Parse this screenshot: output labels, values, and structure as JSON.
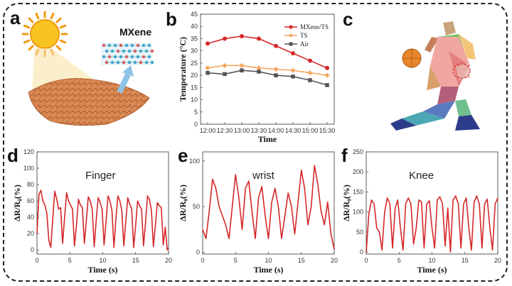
{
  "panels": {
    "a": "a",
    "b": "b",
    "c": "c",
    "d": "d",
    "e": "e",
    "f": "f"
  },
  "panel_a": {
    "label": "MXene"
  },
  "colors": {
    "red": "#d62728",
    "orange": "#f4a65c",
    "gray": "#555555",
    "sun": "#f7c41f",
    "fabric": "#d98a55",
    "arrow": "#8ec2e6"
  },
  "chart_data": [
    {
      "id": "temperature",
      "type": "line",
      "title": "",
      "xlabel": "Time",
      "ylabel": "Temperature (°C)",
      "categories": [
        "12:00",
        "12:30",
        "13:00",
        "13:30",
        "14:00",
        "14:30",
        "15:00",
        "15:30"
      ],
      "ylim": [
        0,
        45
      ],
      "yticks": [
        0,
        5,
        10,
        15,
        20,
        25,
        30,
        35,
        40,
        45
      ],
      "legend": "top-right",
      "series": [
        {
          "name": "MXene/TS",
          "color": "#d62728",
          "marker": "circle",
          "values": [
            33,
            35,
            36,
            35,
            32,
            29,
            26,
            23
          ]
        },
        {
          "name": "TS",
          "color": "#f4a65c",
          "marker": "diamond",
          "values": [
            23,
            24,
            24,
            23,
            22.5,
            22,
            21,
            20
          ]
        },
        {
          "name": "Air",
          "color": "#555555",
          "marker": "square",
          "values": [
            21,
            20.5,
            22,
            21.5,
            20,
            19.5,
            18,
            16
          ]
        }
      ]
    },
    {
      "id": "finger",
      "type": "line",
      "title": "",
      "label": "Finger",
      "xlabel": "Time (s)",
      "ylabel": "ΔR/R₀(%)",
      "xlim": [
        0,
        20
      ],
      "xticks": [
        0,
        5,
        10,
        15,
        20
      ],
      "ylim": [
        -5,
        120
      ],
      "yticks": [
        0,
        20,
        40,
        60,
        80,
        100,
        120
      ],
      "color": "#d62728",
      "x": [
        0,
        0.3,
        0.6,
        0.9,
        1.2,
        1.5,
        1.8,
        2.1,
        2.4,
        2.7,
        3.0,
        3.3,
        3.6,
        3.9,
        4.2,
        4.5,
        4.8,
        5.1,
        5.4,
        5.7,
        6.0,
        6.3,
        6.6,
        6.9,
        7.2,
        7.5,
        7.8,
        8.1,
        8.4,
        8.7,
        9.0,
        9.3,
        9.6,
        9.9,
        10.2,
        10.5,
        10.8,
        11.1,
        11.4,
        11.7,
        12.0,
        12.3,
        12.6,
        12.9,
        13.2,
        13.5,
        13.8,
        14.1,
        14.4,
        14.7,
        15.0,
        15.3,
        15.6,
        15.9,
        16.2,
        16.5,
        16.8,
        17.1,
        17.4,
        17.7,
        18.0,
        18.3,
        18.6,
        18.9,
        19.2,
        19.5,
        19.8,
        20.0
      ],
      "y": [
        20,
        68,
        73,
        60,
        55,
        45,
        12,
        3,
        38,
        72,
        62,
        50,
        52,
        8,
        40,
        70,
        60,
        55,
        50,
        5,
        30,
        62,
        55,
        52,
        8,
        35,
        65,
        60,
        50,
        4,
        36,
        64,
        58,
        50,
        6,
        35,
        66,
        60,
        48,
        3,
        38,
        66,
        60,
        48,
        5,
        35,
        64,
        56,
        50,
        3,
        30,
        60,
        54,
        50,
        5,
        33,
        66,
        62,
        48,
        4,
        30,
        58,
        54,
        52,
        6,
        28,
        0,
        3
      ]
    },
    {
      "id": "wrist",
      "type": "line",
      "title": "",
      "label": "wrist",
      "xlabel": "Time (s)",
      "ylabel": "ΔR/R₀(%)",
      "xlim": [
        0,
        20
      ],
      "xticks": [
        0,
        5,
        10,
        15,
        20
      ],
      "ylim": [
        -2,
        110
      ],
      "yticks": [
        0,
        50,
        100
      ],
      "color": "#d62728",
      "x": [
        0,
        0.5,
        1.0,
        1.5,
        2.0,
        2.5,
        3.0,
        3.5,
        4.0,
        4.5,
        5.0,
        5.5,
        6.0,
        6.5,
        7.0,
        7.5,
        8.0,
        8.5,
        9.0,
        9.5,
        10.0,
        10.5,
        11.0,
        11.5,
        12.0,
        12.5,
        13.0,
        13.5,
        14.0,
        14.5,
        15.0,
        15.5,
        16.0,
        16.5,
        17.0,
        17.5,
        18.0,
        18.5,
        19.0,
        19.5,
        20.0
      ],
      "y": [
        25,
        15,
        45,
        80,
        70,
        50,
        40,
        30,
        15,
        50,
        85,
        60,
        25,
        70,
        78,
        45,
        15,
        60,
        72,
        40,
        15,
        55,
        70,
        50,
        15,
        40,
        65,
        50,
        20,
        55,
        90,
        70,
        30,
        50,
        95,
        75,
        45,
        30,
        55,
        20,
        3
      ]
    },
    {
      "id": "knee",
      "type": "line",
      "title": "",
      "label": "Knee",
      "xlabel": "Time (s)",
      "ylabel": "ΔR/R₀(%)",
      "xlim": [
        0,
        20
      ],
      "xticks": [
        0,
        5,
        10,
        15,
        20
      ],
      "ylim": [
        -5,
        250
      ],
      "yticks": [
        0,
        50,
        100,
        150,
        200,
        250
      ],
      "color": "#d62728",
      "x": [
        0,
        0.4,
        0.8,
        1.2,
        1.6,
        2.0,
        2.4,
        2.8,
        3.2,
        3.6,
        4.0,
        4.4,
        4.8,
        5.2,
        5.6,
        6.0,
        6.4,
        6.8,
        7.2,
        7.6,
        8.0,
        8.4,
        8.8,
        9.2,
        9.6,
        10.0,
        10.4,
        10.8,
        11.2,
        11.6,
        12.0,
        12.4,
        12.8,
        13.2,
        13.6,
        14.0,
        14.4,
        14.8,
        15.2,
        15.6,
        16.0,
        16.4,
        16.8,
        17.2,
        17.6,
        18.0,
        18.4,
        18.8,
        19.2,
        19.6,
        20.0
      ],
      "y": [
        0,
        95,
        130,
        120,
        60,
        50,
        5,
        100,
        135,
        120,
        10,
        110,
        130,
        60,
        5,
        120,
        135,
        120,
        20,
        60,
        130,
        125,
        10,
        120,
        128,
        60,
        10,
        130,
        138,
        120,
        15,
        110,
        0,
        130,
        140,
        120,
        10,
        120,
        135,
        60,
        5,
        125,
        140,
        120,
        10,
        120,
        132,
        60,
        5,
        120,
        135
      ]
    }
  ]
}
